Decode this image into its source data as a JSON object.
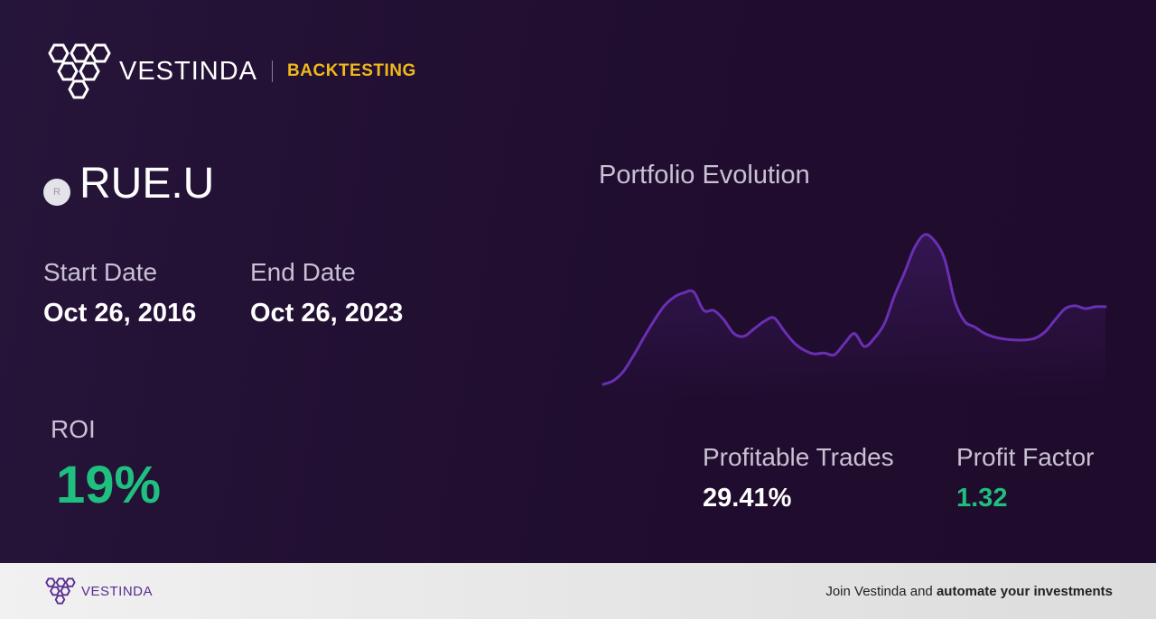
{
  "brand": {
    "name": "VESTINDA",
    "section": "BACKTESTING"
  },
  "ticker": {
    "symbol": "RUE.U",
    "badge_letter": "R"
  },
  "dates": {
    "start_label": "Start Date",
    "start_value": "Oct 26, 2016",
    "end_label": "End Date",
    "end_value": "Oct 26, 2023"
  },
  "roi": {
    "label": "ROI",
    "value": "19%"
  },
  "portfolio": {
    "title": "Portfolio Evolution"
  },
  "stats": {
    "profitable_label": "Profitable Trades",
    "profitable_value": "29.41%",
    "pf_label": "Profit Factor",
    "pf_value": "1.32"
  },
  "footer": {
    "brand": "VESTINDA",
    "cta_prefix": "Join Vestinda and",
    "cta_bold": "automate your investments"
  },
  "colors": {
    "accent": "#f0b91a",
    "positive": "#1fc07f",
    "line": "#6a2fb3",
    "brand_purple": "#5a2d91"
  },
  "icons": {
    "logo": "hexagon-cluster-logo",
    "ticker": "ticker-badge"
  },
  "chart_data": {
    "type": "area",
    "x": [
      0,
      2,
      4,
      6,
      8,
      10,
      12,
      14,
      16,
      18,
      20,
      22,
      24,
      26,
      28,
      30,
      32,
      34,
      36,
      38,
      40,
      42,
      44,
      46,
      48,
      50,
      52,
      54,
      56,
      58,
      60,
      62,
      64,
      66,
      68,
      70,
      72,
      74,
      76,
      78,
      80,
      82,
      84,
      86,
      88,
      90,
      92,
      94,
      96,
      98,
      100
    ],
    "values": [
      0,
      4,
      14,
      31,
      50,
      68,
      84,
      94,
      99,
      100,
      80,
      80,
      70,
      55,
      52,
      60,
      68,
      72,
      58,
      45,
      37,
      33,
      34,
      32,
      44,
      55,
      41,
      50,
      66,
      96,
      121,
      148,
      162,
      155,
      135,
      90,
      68,
      62,
      55,
      51,
      49,
      48,
      48,
      50,
      57,
      70,
      82,
      85,
      82,
      84,
      84
    ]
  }
}
